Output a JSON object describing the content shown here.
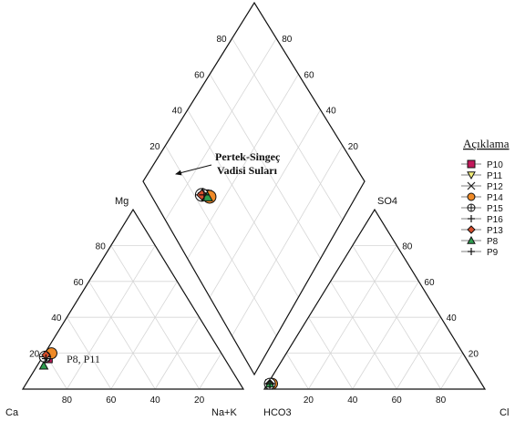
{
  "chart_data": {
    "type": "scatter",
    "subtype": "piper-diagram",
    "grid": true,
    "legend_position": "right",
    "legend_title": "Açıklama",
    "cation_triangle": {
      "corners": {
        "left": "Ca",
        "right": "Na+K",
        "top": "Mg"
      },
      "bottom_ticks": [
        "80",
        "60",
        "40",
        "20"
      ],
      "left_ticks": [
        "20",
        "40",
        "60",
        "80"
      ]
    },
    "anion_triangle": {
      "corners": {
        "left": "HCO3",
        "right": "Cl",
        "top": "SO4"
      },
      "bottom_ticks": [
        "20",
        "40",
        "60",
        "80"
      ],
      "right_ticks": [
        "20",
        "40",
        "60",
        "80"
      ]
    },
    "diamond": {
      "left_ticks": [
        "20",
        "40",
        "60",
        "80"
      ],
      "right_ticks": [
        "20",
        "40",
        "60",
        "80"
      ]
    },
    "annotations": {
      "diamond_cluster_line1": "Pertek-Singeç",
      "diamond_cluster_line2": "Vadisi Suları",
      "cation_cluster": "P8, P11"
    },
    "series": [
      {
        "name": "P10",
        "marker": "square",
        "color": "#c2185b",
        "ca": 80,
        "mg": 17,
        "hco3": 96,
        "cl": 1,
        "diamond": [
          24,
          69
        ]
      },
      {
        "name": "P11",
        "marker": "triangle-down",
        "color": "#f3ef7a",
        "ca": 79,
        "mg": 18,
        "hco3": 96,
        "cl": 1,
        "diamond": [
          24,
          69
        ]
      },
      {
        "name": "P12",
        "marker": "x",
        "color": "#222222",
        "ca": 79,
        "mg": 19,
        "hco3": 95,
        "cl": 2,
        "diamond": [
          25,
          68
        ]
      },
      {
        "name": "P14",
        "marker": "circle",
        "color": "#ef8a27",
        "ca": 77,
        "mg": 20,
        "hco3": 95,
        "cl": 2,
        "diamond": [
          26,
          66
        ]
      },
      {
        "name": "P15",
        "marker": "circle-plus",
        "color": "#ffffff",
        "ca": 81,
        "mg": 18,
        "hco3": 96,
        "cl": 1,
        "diamond": [
          23,
          70
        ]
      },
      {
        "name": "P16",
        "marker": "plus",
        "color": "#111111",
        "ca": 80,
        "mg": 18,
        "hco3": 96,
        "cl": 1,
        "diamond": [
          24,
          70
        ]
      },
      {
        "name": "P13",
        "marker": "diamond",
        "color": "#d84e2c",
        "ca": 80,
        "mg": 19,
        "hco3": 96,
        "cl": 1,
        "diamond": [
          23,
          70
        ]
      },
      {
        "name": "P8",
        "marker": "triangle-up",
        "color": "#2e9e4f",
        "ca": 84,
        "mg": 13,
        "hco3": 96,
        "cl": 1,
        "diamond": [
          25,
          67
        ]
      },
      {
        "name": "P9",
        "marker": "plus",
        "color": "#111111",
        "ca": 81,
        "mg": 17,
        "hco3": 96,
        "cl": 1,
        "diamond": [
          24,
          69
        ]
      }
    ]
  }
}
